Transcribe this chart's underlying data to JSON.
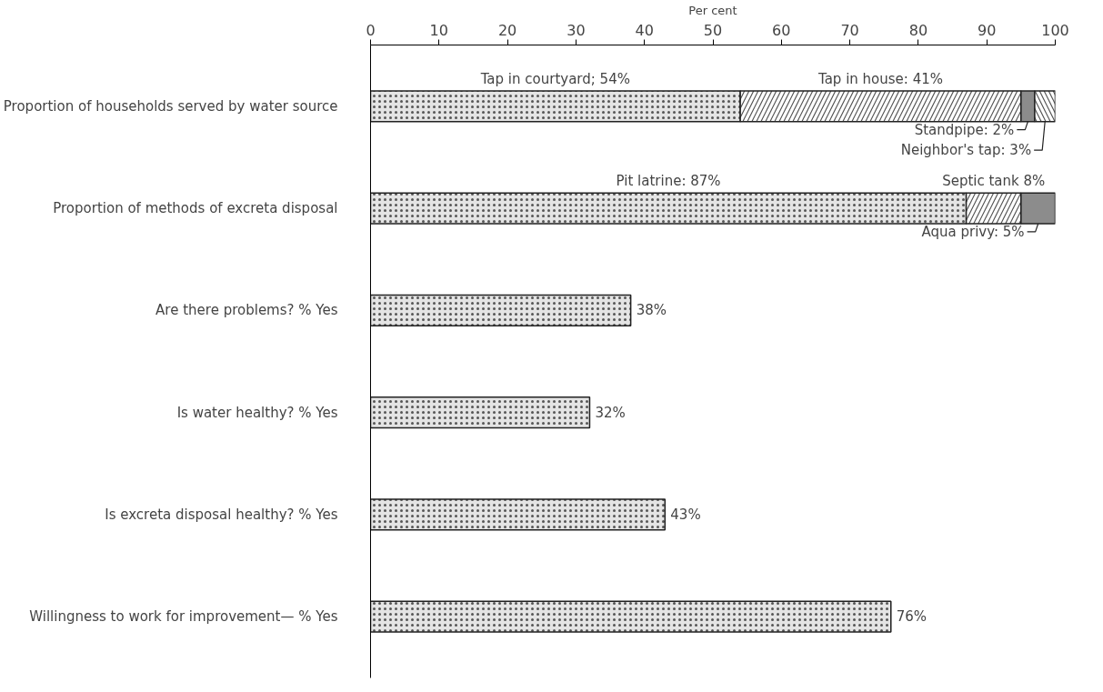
{
  "chart_data": {
    "type": "bar",
    "orientation": "horizontal",
    "stacked": true,
    "xlabel": "Per cent",
    "xlim": [
      0,
      100
    ],
    "xticks": [
      0,
      10,
      20,
      30,
      40,
      50,
      60,
      70,
      80,
      90,
      100
    ],
    "grid": false,
    "categories": [
      "Proportion of households served by water source",
      "Proportion of methods of excreta disposal",
      "Are there problems? % Yes",
      "Is water healthy? % Yes",
      "Is excreta disposal healthy? % Yes",
      "Willingness to work for improvement— % Yes"
    ],
    "series": [
      {
        "color": "#e4e4e4",
        "values": [
          54,
          87,
          38,
          32,
          43,
          76
        ],
        "value_labels": [
          "Tap in courtyard; 54%",
          "Pit latrine: 87%",
          "38%",
          "32%",
          "43%",
          "76%"
        ]
      },
      {
        "color": "#ffffff",
        "values": [
          41,
          8,
          null,
          null,
          null,
          null
        ],
        "value_labels": [
          "Tap in house: 41%",
          "Septic tank 8%",
          null,
          null,
          null,
          null
        ]
      },
      {
        "color": "#8c8c8c",
        "values": [
          2,
          5,
          null,
          null,
          null,
          null
        ],
        "value_labels": [
          "Standpipe: 2%",
          "Aqua privy: 5%",
          null,
          null,
          null,
          null
        ]
      },
      {
        "color": "#ffffff",
        "values": [
          3,
          null,
          null,
          null,
          null,
          null
        ],
        "value_labels": [
          "Neighbor's tap: 3%",
          null,
          null,
          null,
          null,
          null
        ]
      }
    ]
  }
}
